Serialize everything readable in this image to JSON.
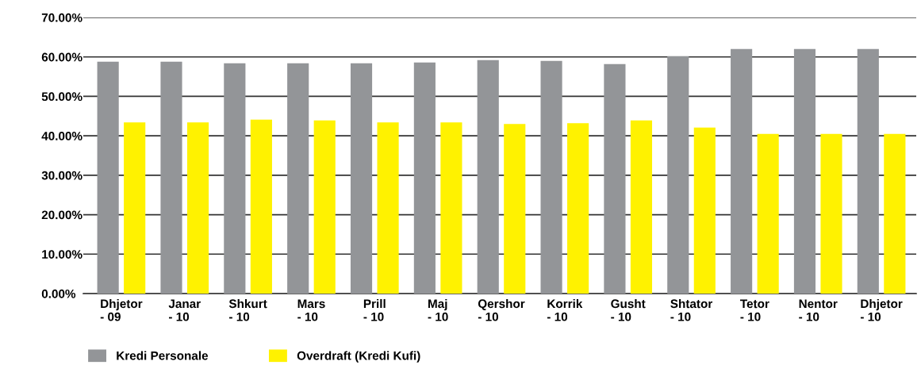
{
  "chart_data": {
    "type": "bar",
    "categories": [
      "Dhjetor\n- 09",
      "Janar\n- 10",
      "Shkurt\n- 10",
      "Mars\n- 10",
      "Prill\n- 10",
      "Maj\n- 10",
      "Qershor\n- 10",
      "Korrik\n- 10",
      "Gusht\n- 10",
      "Shtator\n- 10",
      "Tetor\n- 10",
      "Nentor\n- 10",
      "Dhjetor\n- 10"
    ],
    "series": [
      {
        "name": "Kredi Personale",
        "color": "#939598",
        "values": [
          58.8,
          58.8,
          58.4,
          58.4,
          58.4,
          58.6,
          59.2,
          59.0,
          58.2,
          60.2,
          62.0,
          62.0,
          62.0
        ]
      },
      {
        "name": "Overdraft (Kredi Kufi)",
        "color": "#fff200",
        "values": [
          43.4,
          43.4,
          44.1,
          43.9,
          43.4,
          43.4,
          43.0,
          43.2,
          43.9,
          42.1,
          40.5,
          40.5,
          40.5
        ]
      }
    ],
    "ylim": [
      0,
      70
    ],
    "yticks": [
      {
        "value": 0,
        "label": "0.00%"
      },
      {
        "value": 10,
        "label": "10.00%"
      },
      {
        "value": 20,
        "label": "20.00%"
      },
      {
        "value": 30,
        "label": "30.00%"
      },
      {
        "value": 40,
        "label": "40.00%"
      },
      {
        "value": 50,
        "label": "50.00%"
      },
      {
        "value": 60,
        "label": "60.00%"
      },
      {
        "value": 70,
        "label": "70.00%"
      }
    ],
    "grid": "y",
    "legend": "bottom left"
  }
}
